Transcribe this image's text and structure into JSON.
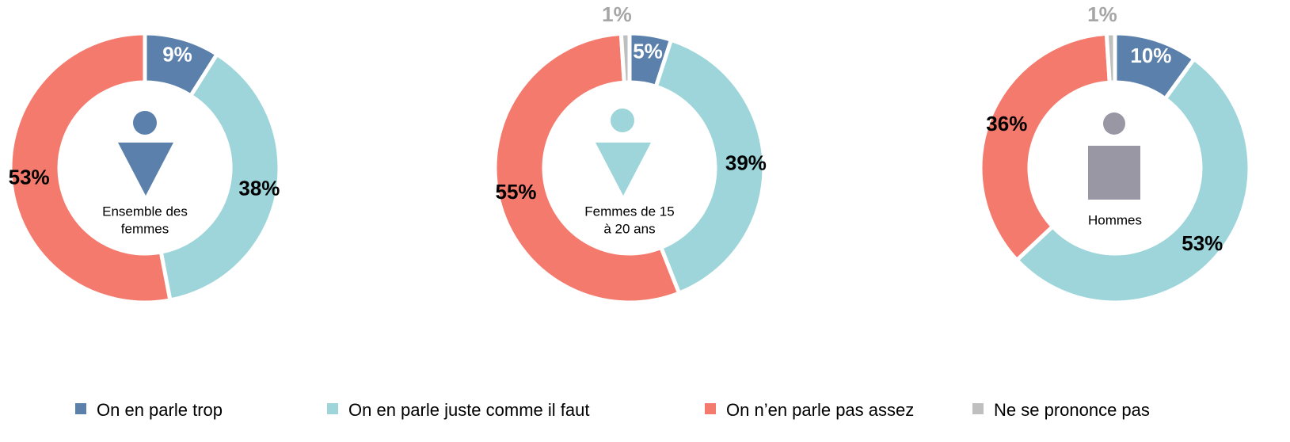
{
  "chart_data": [
    {
      "type": "donut",
      "center_label": [
        "Ensemble des",
        "femmes"
      ],
      "categories": [
        "On en parle trop",
        "On en parle juste comme il faut",
        "On n’en parle pas assez"
      ],
      "values": [
        9,
        38,
        53
      ],
      "value_labels": [
        "9%",
        "38%",
        "53%"
      ],
      "colors": [
        "#5b80ab",
        "#9dd5da",
        "#f47a6d"
      ]
    },
    {
      "type": "donut",
      "center_label": [
        "Femmes de 15",
        "à 20 ans"
      ],
      "categories": [
        "On en parle trop",
        "On en parle juste comme il faut",
        "On n’en parle pas assez",
        "Ne se prononce pas"
      ],
      "values": [
        5,
        39,
        55,
        1
      ],
      "value_labels": [
        "5%",
        "39%",
        "55%",
        "1%"
      ],
      "colors": [
        "#5b80ab",
        "#9dd5da",
        "#f47a6d",
        "#bfbfbf"
      ]
    },
    {
      "type": "donut",
      "center_label": [
        "Hommes"
      ],
      "categories": [
        "On en parle trop",
        "On en parle juste comme il faut",
        "On n’en parle pas assez",
        "Ne se prononce pas"
      ],
      "values": [
        10,
        53,
        36,
        1
      ],
      "value_labels": [
        "10%",
        "53%",
        "36%",
        "1%"
      ],
      "colors": [
        "#5b80ab",
        "#9dd5da",
        "#f47a6d",
        "#bfbfbf"
      ]
    }
  ]
}
